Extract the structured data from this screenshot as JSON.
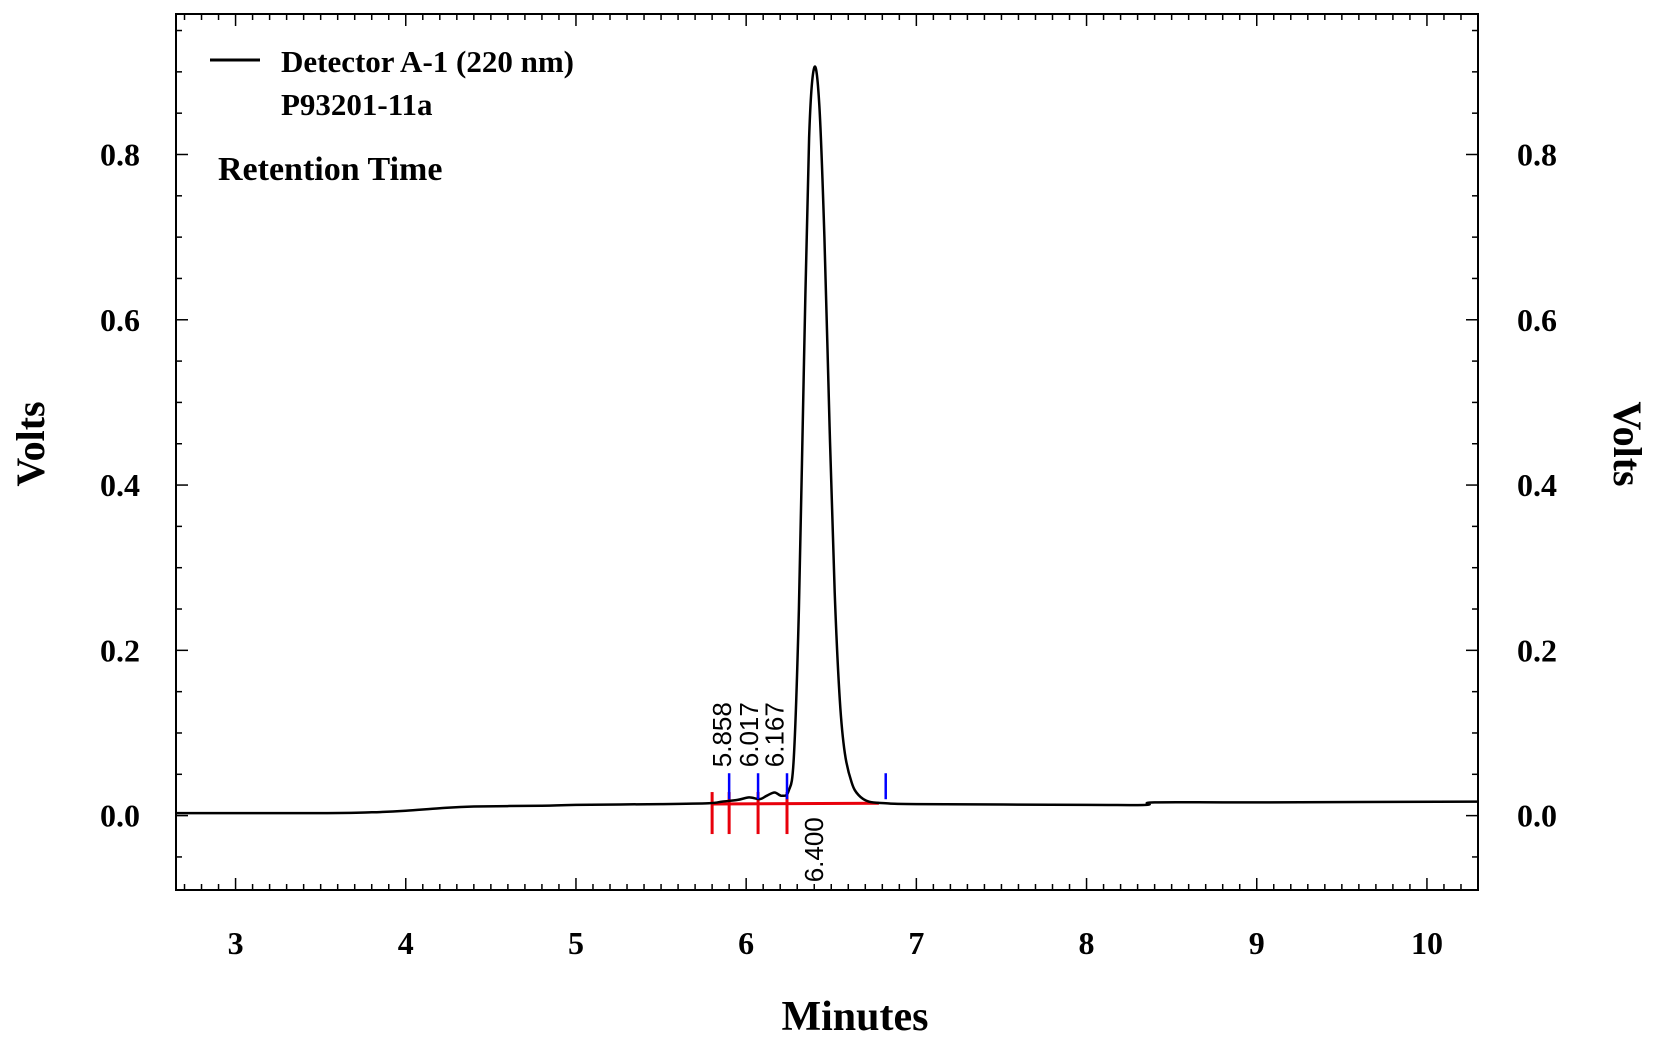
{
  "chart_data": {
    "type": "line",
    "xlabel": "Minutes",
    "ylabel_left": "Volts",
    "ylabel_right": "Volts",
    "xlim": [
      2.65,
      10.3
    ],
    "ylim": [
      -0.09,
      0.97
    ],
    "x_ticks": [
      3,
      4,
      5,
      6,
      7,
      8,
      9,
      10
    ],
    "y_ticks": [
      0.0,
      0.2,
      0.4,
      0.6,
      0.8
    ],
    "legend": {
      "position": "top-left",
      "series_label": "Detector A-1 (220 nm)",
      "sample_label": "P93201-11a",
      "annotation_label": "Retention Time"
    },
    "series": [
      {
        "name": "Detector A-1 (220 nm)",
        "color": "#000000",
        "x": [
          2.65,
          3.5,
          3.8,
          4.0,
          4.2,
          4.4,
          4.8,
          5.0,
          5.5,
          5.78,
          5.86,
          5.95,
          6.017,
          6.08,
          6.12,
          6.167,
          6.21,
          6.25,
          6.28,
          6.31,
          6.34,
          6.37,
          6.4,
          6.43,
          6.46,
          6.49,
          6.52,
          6.55,
          6.58,
          6.62,
          6.66,
          6.72,
          6.82,
          7.0,
          8.0,
          8.35,
          8.4,
          9.0,
          10.3
        ],
        "y": [
          0.003,
          0.003,
          0.004,
          0.006,
          0.009,
          0.011,
          0.012,
          0.013,
          0.014,
          0.015,
          0.017,
          0.019,
          0.022,
          0.02,
          0.024,
          0.028,
          0.024,
          0.03,
          0.07,
          0.25,
          0.55,
          0.82,
          0.905,
          0.86,
          0.7,
          0.47,
          0.27,
          0.14,
          0.075,
          0.04,
          0.025,
          0.017,
          0.015,
          0.014,
          0.013,
          0.013,
          0.016,
          0.016,
          0.017
        ]
      }
    ],
    "peaks": [
      {
        "label": "5.858",
        "rt": 5.858,
        "label_position": "above"
      },
      {
        "label": "6.017",
        "rt": 6.017,
        "label_position": "above"
      },
      {
        "label": "6.167",
        "rt": 6.167,
        "label_position": "above"
      },
      {
        "label": "6.400",
        "rt": 6.4,
        "label_position": "below"
      }
    ],
    "baseline": {
      "color": "#e8000b",
      "x_start": 5.8,
      "x_end": 6.78,
      "y_start": 0.014,
      "y_end": 0.015,
      "ticks": [
        5.8,
        5.9,
        6.07,
        6.24
      ]
    },
    "integration_markers": {
      "color": "#0000ff",
      "x": [
        5.9,
        6.07,
        6.24,
        6.82
      ]
    }
  }
}
